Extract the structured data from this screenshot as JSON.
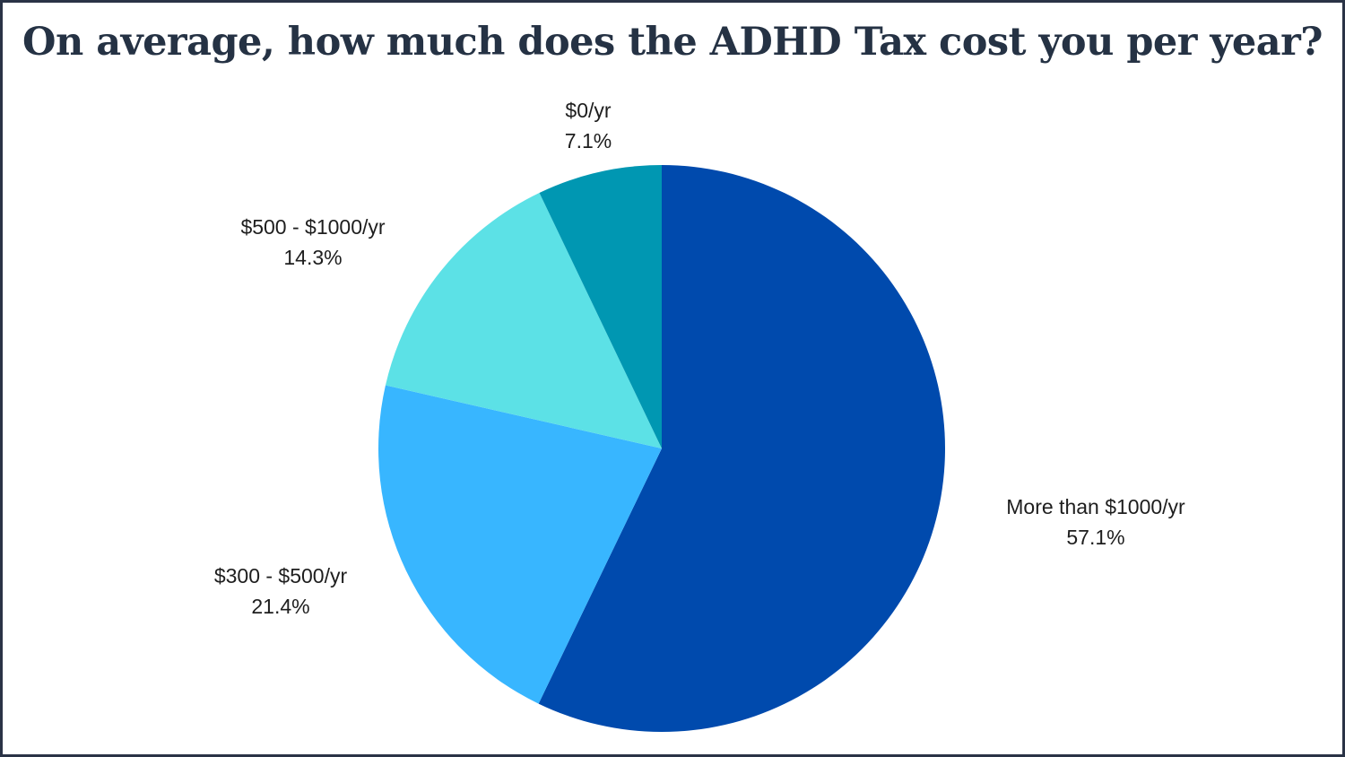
{
  "chart_data": {
    "type": "pie",
    "title": "On average, how much does the ADHD Tax cost you per year?",
    "slices": [
      {
        "label": "More than $1000/yr",
        "value": 57.1,
        "value_label": "57.1%",
        "color": "#004aad"
      },
      {
        "label": "$300 - $500/yr",
        "value": 21.4,
        "value_label": "21.4%",
        "color": "#38b6ff"
      },
      {
        "label": "$500 - $1000/yr",
        "value": 14.3,
        "value_label": "14.3%",
        "color": "#5ce1e6"
      },
      {
        "label": "$0/yr",
        "value": 7.1,
        "value_label": "7.1%",
        "color": "#0097b2"
      }
    ],
    "start_angle": "12 o'clock",
    "direction": "clockwise",
    "legend": "none"
  },
  "colors": {
    "border": "#2a3346",
    "title": "#253244",
    "label_text": "#1e1e1e"
  }
}
